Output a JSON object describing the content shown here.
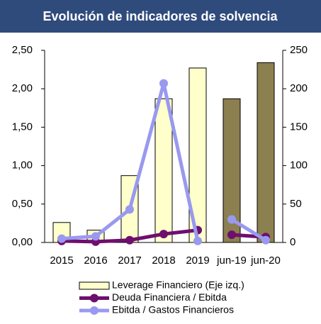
{
  "chart_data": {
    "type": "combo",
    "title": "Evolución de indicadores de solvencia",
    "categories": [
      "2015",
      "2016",
      "2017",
      "2018",
      "2019",
      "jun-19",
      "jun-20"
    ],
    "series": [
      {
        "name": "Leverage Financiero (Eje izq.)",
        "type": "bar",
        "color": "#ffffcc",
        "colors": [
          "#ffffcc",
          "#ffffcc",
          "#ffffcc",
          "#ffffcc",
          "#ffffcc",
          "#8c7f50",
          "#8c7f50"
        ],
        "values": [
          0.26,
          0.16,
          0.87,
          1.87,
          2.27,
          1.87,
          2.34
        ]
      },
      {
        "name": "Deuda Financiera / Ebitda",
        "type": "line",
        "color": "#6e0f6e",
        "values": [
          0.02,
          0.01,
          0.03,
          0.11,
          0.16,
          0.1,
          0.07
        ]
      },
      {
        "name": "Ebitda / Gastos Financieros",
        "type": "line",
        "color": "#9999f0",
        "axis": "y2",
        "values": [
          5,
          8,
          43,
          207,
          2,
          30,
          3
        ]
      }
    ],
    "gaps_after": [
      4
    ],
    "ylim": [
      0,
      2.5
    ],
    "yticks": [
      {
        "value": 0,
        "label": "0,00"
      },
      {
        "value": 0.5,
        "label": "0,50"
      },
      {
        "value": 1,
        "label": "1,00"
      },
      {
        "value": 1.5,
        "label": "1,50"
      },
      {
        "value": 2,
        "label": "2,00"
      },
      {
        "value": 2.5,
        "label": "2,50"
      }
    ],
    "y2lim": [
      0,
      250
    ],
    "y2ticks": [
      0,
      50,
      100,
      150,
      200,
      250
    ],
    "grid": false
  }
}
